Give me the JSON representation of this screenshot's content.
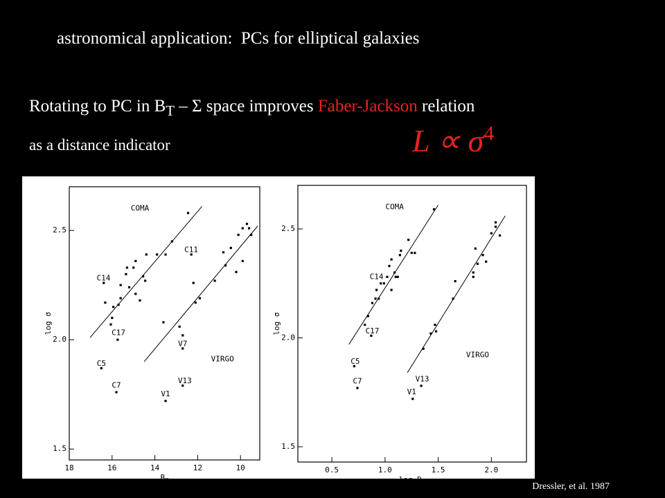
{
  "slide": {
    "title": "astronomical application:  PCs for elliptical galaxies",
    "line1": {
      "a": "Rotating to PC in B",
      "sub": "T",
      "b": " – Σ space improves ",
      "highlight": "Faber-Jackson",
      "c": " relation"
    },
    "line2": "as a distance indicator",
    "formula": {
      "base": "L ∝ σ",
      "sup": "4"
    },
    "credit": "Dressler, et al. 1987"
  },
  "chart_data": [
    {
      "type": "scatter",
      "x_label": {
        "text": "B",
        "sub": "T"
      },
      "y_label": "log σ",
      "xlim": [
        18,
        9.1
      ],
      "ylim": [
        1.45,
        2.7
      ],
      "xticks": [
        18,
        16,
        14,
        12,
        10
      ],
      "yticks": [
        1.5,
        {
          "value": 2,
          "label": "2.0"
        },
        2.5
      ],
      "color": "#000000",
      "x": [
        12.45,
        16.39,
        16.32,
        16.0,
        15.94,
        15.7,
        15.6,
        15.6,
        15.35,
        15.3,
        15.2,
        15.0,
        14.9,
        14.9,
        14.7,
        14.55,
        14.45,
        14.4,
        13.9,
        13.5,
        13.2,
        16.06,
        15.74,
        16.5,
        15.8,
        12.3,
        12.2,
        12.1,
        11.9,
        11.2,
        10.8,
        10.7,
        10.45,
        10.2,
        10.1,
        9.9,
        9.9,
        9.7,
        9.6,
        9.5,
        13.6,
        12.85,
        12.7,
        12.7,
        12.7,
        13.5
      ],
      "values": [
        2.58,
        2.26,
        2.17,
        2.1,
        2.15,
        2.16,
        2.25,
        2.19,
        2.3,
        2.33,
        2.24,
        2.33,
        2.36,
        2.21,
        2.18,
        2.29,
        2.27,
        2.39,
        2.39,
        2.39,
        2.45,
        2.07,
        2.0,
        1.87,
        1.76,
        2.39,
        2.26,
        2.17,
        2.19,
        2.27,
        2.4,
        2.34,
        2.42,
        2.31,
        2.48,
        2.36,
        2.51,
        2.53,
        2.51,
        2.48,
        2.08,
        2.06,
        2.02,
        1.96,
        1.79,
        1.72
      ],
      "lines": [
        {
          "x": [
            17.03,
            11.8
          ],
          "y": [
            2.01,
            2.61
          ]
        },
        {
          "x": [
            14.5,
            9.2
          ],
          "y": [
            1.9,
            2.52
          ]
        }
      ],
      "annotations": [
        {
          "text": "COMA",
          "x": 14.7,
          "y": 2.6
        },
        {
          "text": "VIRGO",
          "x": 10.84,
          "y": 1.91
        },
        {
          "text": "C11",
          "x": 12.3,
          "y": 2.41
        },
        {
          "text": "C14",
          "x": 16.4,
          "y": 2.28
        },
        {
          "text": "C17",
          "x": 15.7,
          "y": 2.03
        },
        {
          "text": "C5",
          "x": 16.5,
          "y": 1.89
        },
        {
          "text": "C7",
          "x": 15.8,
          "y": 1.79
        },
        {
          "text": "V7",
          "x": 12.7,
          "y": 1.98
        },
        {
          "text": "V13",
          "x": 12.6,
          "y": 1.81
        },
        {
          "text": "V1",
          "x": 13.5,
          "y": 1.75
        }
      ]
    },
    {
      "type": "scatter",
      "x_label": {
        "text": "log D",
        "sub": "n"
      },
      "y_label": "log σ",
      "xlim": [
        0.18,
        2.33
      ],
      "ylim": [
        1.43,
        2.7
      ],
      "xticks": [
        0.5,
        {
          "value": 1,
          "label": "1.0"
        },
        1.5,
        {
          "value": 2,
          "label": "2.0"
        }
      ],
      "yticks": [
        1.5,
        {
          "value": 2,
          "label": "2.0"
        },
        2.5
      ],
      "color": "#000000",
      "x": [
        1.46,
        0.81,
        0.84,
        0.88,
        0.91,
        0.92,
        0.94,
        0.96,
        0.99,
        1.02,
        1.04,
        1.06,
        1.06,
        1.09,
        1.1,
        1.12,
        1.14,
        1.15,
        1.22,
        1.25,
        1.28,
        0.87,
        0.71,
        0.74,
        1.36,
        1.43,
        1.47,
        1.48,
        1.64,
        1.66,
        1.83,
        1.83,
        1.85,
        1.87,
        1.92,
        1.95,
        2.0,
        2.04,
        2.04,
        2.08,
        1.34,
        1.26
      ],
      "values": [
        2.59,
        2.06,
        2.1,
        2.16,
        2.18,
        2.22,
        2.18,
        2.25,
        2.25,
        2.28,
        2.33,
        2.36,
        2.22,
        2.3,
        2.28,
        2.28,
        2.38,
        2.4,
        2.45,
        2.39,
        2.39,
        2.01,
        1.87,
        1.77,
        1.95,
        2.02,
        2.06,
        2.03,
        2.18,
        2.26,
        2.3,
        2.28,
        2.41,
        2.34,
        2.38,
        2.35,
        2.48,
        2.53,
        2.51,
        2.47,
        1.78,
        1.72
      ],
      "lines": [
        {
          "x": [
            0.66,
            1.5
          ],
          "y": [
            1.97,
            2.61
          ]
        },
        {
          "x": [
            1.21,
            2.13
          ],
          "y": [
            1.84,
            2.56
          ]
        }
      ],
      "annotations": [
        {
          "text": "COMA",
          "x": 1.09,
          "y": 2.6
        },
        {
          "text": "VIRGO",
          "x": 1.87,
          "y": 1.92
        },
        {
          "text": "C14",
          "x": 0.92,
          "y": 2.28
        },
        {
          "text": "C17",
          "x": 0.88,
          "y": 2.03
        },
        {
          "text": "C5",
          "x": 0.72,
          "y": 1.89
        },
        {
          "text": "C7",
          "x": 0.74,
          "y": 1.8
        },
        {
          "text": "V13",
          "x": 1.35,
          "y": 1.81
        },
        {
          "text": "V1",
          "x": 1.25,
          "y": 1.75
        }
      ]
    }
  ]
}
